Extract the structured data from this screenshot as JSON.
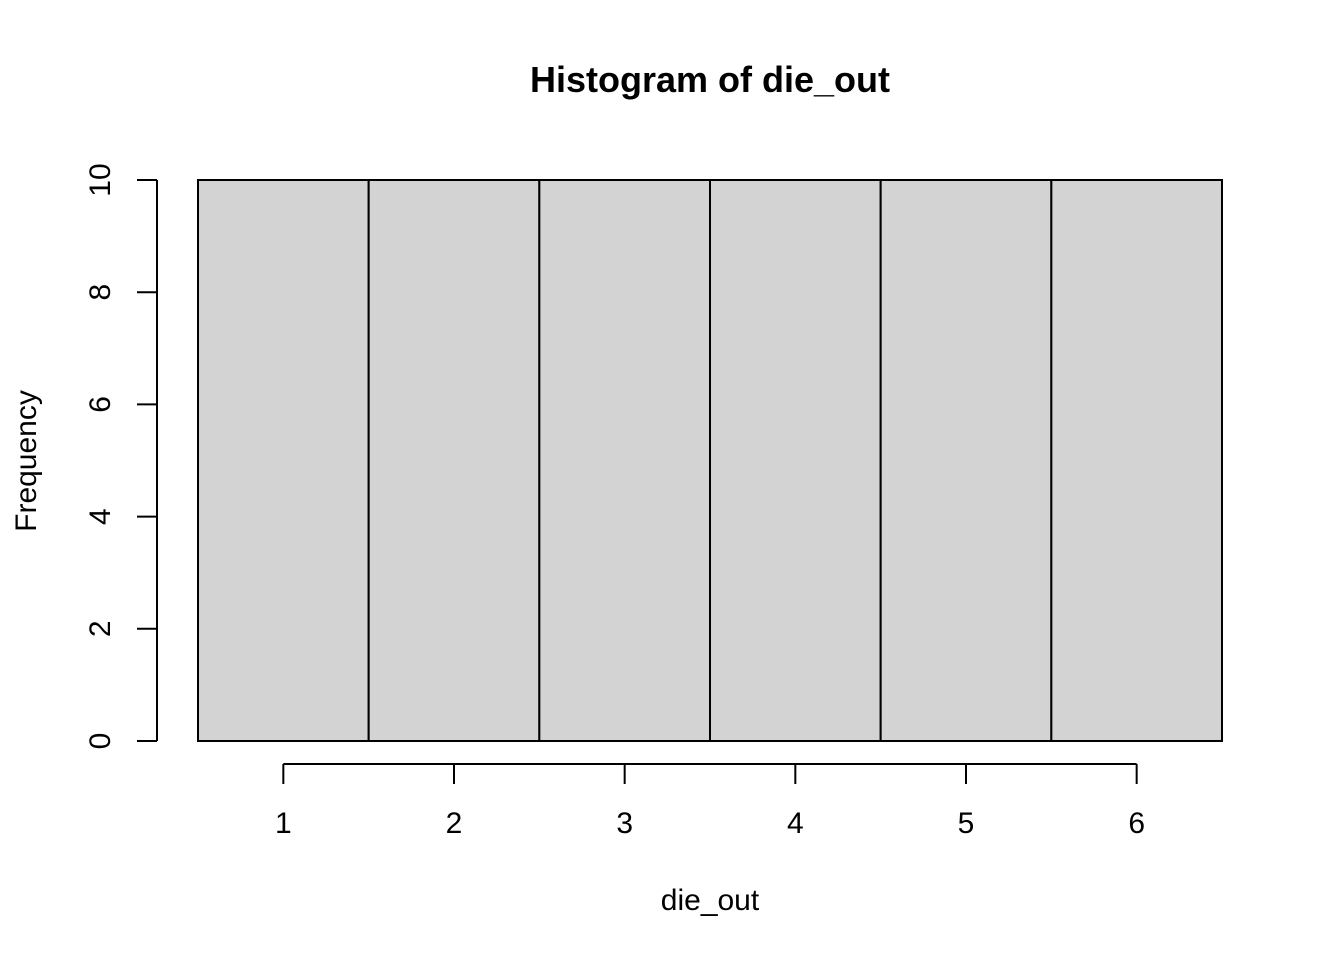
{
  "chart_data": {
    "type": "bar",
    "title": "Histogram of die_out",
    "xlabel": "die_out",
    "ylabel": "Frequency",
    "bins": [
      {
        "start": 0.5,
        "end": 1.5,
        "count": 10
      },
      {
        "start": 1.5,
        "end": 2.5,
        "count": 10
      },
      {
        "start": 2.5,
        "end": 3.5,
        "count": 10
      },
      {
        "start": 3.5,
        "end": 4.5,
        "count": 10
      },
      {
        "start": 4.5,
        "end": 5.5,
        "count": 10
      },
      {
        "start": 5.5,
        "end": 6.5,
        "count": 10
      }
    ],
    "xlim": [
      0.5,
      6.5
    ],
    "ylim": [
      0,
      10
    ],
    "x_ticks": [
      1,
      2,
      3,
      4,
      5,
      6
    ],
    "y_ticks": [
      0,
      2,
      4,
      6,
      8,
      10
    ],
    "grid": false,
    "bar_color": "#d3d3d3",
    "edge_color": "#000000"
  }
}
